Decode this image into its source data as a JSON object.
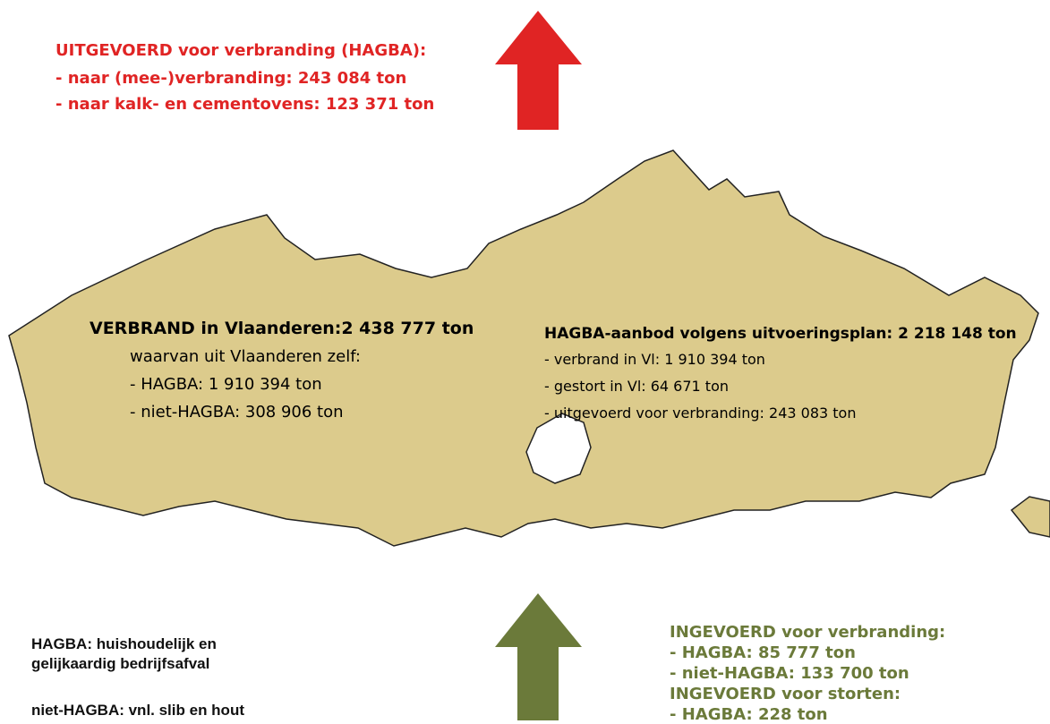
{
  "exported": {
    "heading": "UITGEVOERD voor verbranding (HAGBA):",
    "lines": [
      "- naar (mee-)verbranding: 243 084 ton",
      "- naar kalk- en cementovens: 123 371 ton"
    ]
  },
  "burned": {
    "heading": "VERBRAND in Vlaanderen:2 438 777 ton",
    "subheading": "waarvan uit Vlaanderen zelf:",
    "lines": [
      "- HAGBA: 1 910 394 ton",
      "- niet-HAGBA: 308 906 ton"
    ]
  },
  "supply": {
    "heading": "HAGBA-aanbod volgens uitvoeringsplan: 2 218 148 ton",
    "lines": [
      "- verbrand in Vl: 1 910 394 ton",
      "- gestort in Vl: 64 671 ton",
      "- uitgevoerd voor verbranding: 243 083 ton"
    ]
  },
  "imported": {
    "lines": [
      "INGEVOERD voor verbranding:",
      "- HAGBA:  85 777 ton",
      "- niet-HAGBA:  133 700 ton",
      "INGEVOERD voor storten:",
      "- HAGBA:  228 ton"
    ]
  },
  "legend": {
    "lines": [
      "HAGBA: huishoudelijk en",
      "gelijkaardig bedrijfsafval",
      "niet-HAGBA: vnl. slib en hout"
    ]
  }
}
